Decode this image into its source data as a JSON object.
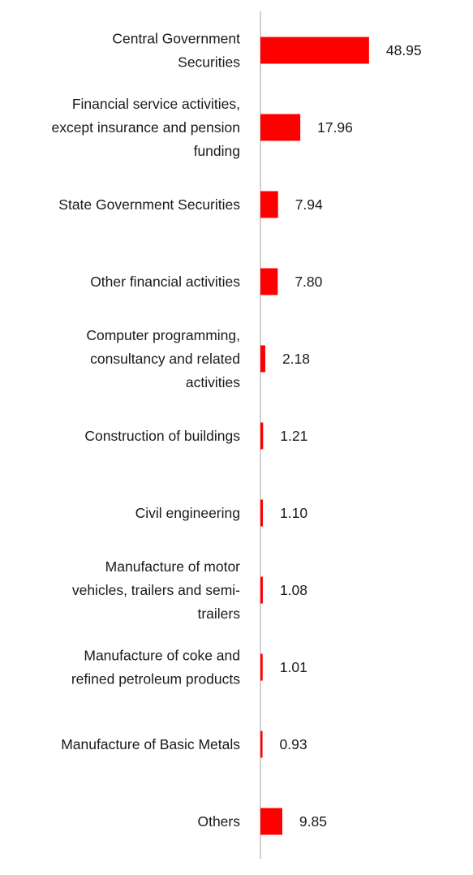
{
  "chart_data": {
    "type": "bar",
    "orientation": "horizontal",
    "categories": [
      "Central Government Securities",
      "Financial service activities, except insurance and pension funding",
      "State Government Securities",
      "Other financial activities",
      "Computer programming, consultancy and related activities",
      "Construction of buildings",
      "Civil engineering",
      "Manufacture of motor vehicles, trailers and semi-trailers",
      "Manufacture of coke and refined petroleum products",
      "Manufacture of Basic Metals",
      "Others"
    ],
    "category_lines": [
      [
        "Central Government",
        "Securities"
      ],
      [
        "Financial service activities,",
        "except insurance and pension",
        "funding"
      ],
      [
        "State Government Securities"
      ],
      [
        "Other financial activities"
      ],
      [
        "Computer programming,",
        "consultancy and related",
        "activities"
      ],
      [
        "Construction of buildings"
      ],
      [
        "Civil engineering"
      ],
      [
        "Manufacture of motor",
        "vehicles, trailers and semi-",
        "trailers"
      ],
      [
        "Manufacture of coke and",
        "refined petroleum products"
      ],
      [
        "Manufacture of Basic Metals"
      ],
      [
        "Others"
      ]
    ],
    "values": [
      48.95,
      17.96,
      7.94,
      7.8,
      2.18,
      1.21,
      1.1,
      1.08,
      1.01,
      0.93,
      9.85
    ],
    "value_labels": [
      "48.95",
      "17.96",
      "7.94",
      "7.80",
      "2.18",
      "1.21",
      "1.10",
      "1.08",
      "1.01",
      "0.93",
      "9.85"
    ],
    "bar_color": "#ff0000",
    "axis_color": "#d0d0d0",
    "xlim": [
      0,
      49
    ],
    "grid": false,
    "legend": "none",
    "title": "",
    "xlabel": "",
    "ylabel": ""
  }
}
